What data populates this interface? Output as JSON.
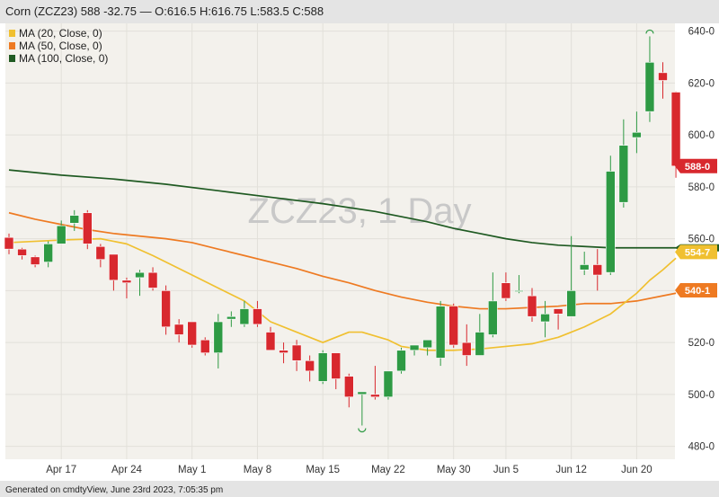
{
  "header": {
    "title": "Corn (ZCZ23) 588 -32.75 — O:616.5 H:616.75 L:583.5 C:588"
  },
  "watermark": "ZCZ23, 1 Day",
  "footer": "Generated on cmdtyView, June 23rd 2023, 7:05:35 pm",
  "colors": {
    "up": "#2e9a44",
    "down": "#d8282e",
    "ma20": "#f0c030",
    "ma50": "#ee7a22",
    "ma100": "#1f5a22",
    "plot_bg": "#f3f1ec",
    "header_bg": "#e4e4e4"
  },
  "chart_data": {
    "type": "candlestick",
    "ylim": [
      475,
      643
    ],
    "y_ticks": [
      "640-0",
      "620-0",
      "600-0",
      "580-0",
      "560-0",
      "540-0",
      "520-0",
      "500-0",
      "480-0"
    ],
    "x_labels": [
      "Apr 17",
      "Apr 24",
      "May 1",
      "May 8",
      "May 15",
      "May 22",
      "May 30",
      "Jun 5",
      "Jun 12",
      "Jun 20"
    ],
    "x_label_index": [
      4,
      9,
      14,
      19,
      24,
      29,
      34,
      38,
      43,
      48
    ],
    "legend": [
      "MA (20, Close, 0)",
      "MA (50, Close, 0)",
      "MA (100, Close, 0)"
    ],
    "candles": [
      [
        560.5,
        562,
        554,
        556
      ],
      [
        556,
        556.5,
        552,
        553.5
      ],
      [
        553,
        553.5,
        549,
        550
      ],
      [
        551,
        559,
        549,
        558
      ],
      [
        558,
        567,
        558,
        565
      ],
      [
        566,
        571,
        563,
        569
      ],
      [
        570,
        571,
        556,
        558
      ],
      [
        557,
        558,
        549,
        552
      ],
      [
        554,
        554,
        540,
        544
      ],
      [
        544,
        545,
        537,
        543
      ],
      [
        545,
        548,
        538,
        547
      ],
      [
        547,
        549,
        540,
        541
      ],
      [
        540,
        542,
        523,
        526
      ],
      [
        527,
        529,
        520,
        523
      ],
      [
        528,
        528,
        518,
        519
      ],
      [
        521,
        522,
        515,
        516
      ],
      [
        516,
        531,
        510,
        528
      ],
      [
        529,
        532,
        526,
        530
      ],
      [
        527,
        536,
        526,
        533
      ],
      [
        533,
        536,
        526,
        527
      ],
      [
        524,
        526,
        517,
        517
      ],
      [
        517,
        520,
        512,
        516
      ],
      [
        519,
        521,
        509,
        513
      ],
      [
        513,
        515,
        505,
        509
      ],
      [
        505,
        517,
        504,
        516
      ],
      [
        516,
        516,
        502,
        506
      ],
      [
        507,
        508,
        495,
        499
      ],
      [
        500,
        501,
        488,
        501
      ],
      [
        500,
        511,
        498,
        499
      ],
      [
        499,
        509,
        498,
        509
      ],
      [
        509,
        518,
        508,
        517
      ],
      [
        517,
        519,
        515,
        519
      ],
      [
        518,
        521,
        515,
        521
      ],
      [
        514,
        536,
        511,
        534
      ],
      [
        534,
        535,
        518,
        519
      ],
      [
        520,
        527,
        511,
        515
      ],
      [
        515,
        531,
        515,
        524
      ],
      [
        523,
        547,
        522,
        536
      ],
      [
        543,
        547,
        536,
        537
      ],
      [
        540,
        546,
        539,
        540
      ],
      [
        538,
        541,
        528,
        530
      ],
      [
        528,
        536,
        522,
        531
      ],
      [
        533,
        533,
        525,
        531
      ],
      [
        530,
        561,
        530,
        540
      ],
      [
        548,
        555,
        546,
        550
      ],
      [
        550,
        556,
        540,
        546
      ],
      [
        547,
        592,
        546,
        586
      ],
      [
        574,
        606,
        572,
        596
      ],
      [
        599,
        609,
        593,
        601
      ],
      [
        609,
        638,
        605,
        628
      ],
      [
        624,
        628,
        614,
        621
      ],
      [
        616.5,
        616.75,
        583.5,
        588
      ]
    ],
    "ma20": [
      [
        0,
        558.5
      ],
      [
        4,
        559.5
      ],
      [
        7,
        560
      ],
      [
        9,
        558
      ],
      [
        11,
        553.5
      ],
      [
        14,
        546
      ],
      [
        16,
        541
      ],
      [
        18,
        536
      ],
      [
        20,
        528
      ],
      [
        22,
        524
      ],
      [
        24,
        520
      ],
      [
        26,
        524
      ],
      [
        27,
        524
      ],
      [
        29,
        521
      ],
      [
        30,
        518.5
      ],
      [
        32,
        517
      ],
      [
        34,
        517
      ],
      [
        36,
        517.5
      ],
      [
        38,
        518.5
      ],
      [
        40,
        519.5
      ],
      [
        42,
        522
      ],
      [
        44,
        526
      ],
      [
        46,
        531
      ],
      [
        47,
        535
      ],
      [
        48,
        539
      ],
      [
        49,
        544
      ],
      [
        50,
        548
      ],
      [
        51,
        552.5
      ]
    ],
    "ma50": [
      [
        0,
        570
      ],
      [
        2,
        567.5
      ],
      [
        4,
        565.5
      ],
      [
        6,
        563.5
      ],
      [
        8,
        562
      ],
      [
        10,
        561
      ],
      [
        12,
        560
      ],
      [
        14,
        558.5
      ],
      [
        16,
        556
      ],
      [
        18,
        553.5
      ],
      [
        20,
        551
      ],
      [
        22,
        548.5
      ],
      [
        24,
        545.5
      ],
      [
        26,
        543
      ],
      [
        28,
        540
      ],
      [
        30,
        537.5
      ],
      [
        32,
        535.5
      ],
      [
        34,
        534
      ],
      [
        36,
        533
      ],
      [
        38,
        533
      ],
      [
        40,
        533.5
      ],
      [
        42,
        534
      ],
      [
        44,
        535
      ],
      [
        46,
        535
      ],
      [
        48,
        536
      ],
      [
        50,
        538
      ],
      [
        51,
        539
      ]
    ],
    "ma100": [
      [
        0,
        586.5
      ],
      [
        4,
        584.5
      ],
      [
        8,
        583
      ],
      [
        12,
        581
      ],
      [
        16,
        578.5
      ],
      [
        20,
        576
      ],
      [
        24,
        573.5
      ],
      [
        28,
        570.5
      ],
      [
        30,
        568.5
      ],
      [
        32,
        566.5
      ],
      [
        34,
        564
      ],
      [
        36,
        562
      ],
      [
        38,
        560
      ],
      [
        40,
        558.5
      ],
      [
        42,
        557.5
      ],
      [
        44,
        557
      ],
      [
        46,
        556.5
      ],
      [
        48,
        556.5
      ],
      [
        50,
        556.5
      ],
      [
        51,
        556.5
      ]
    ],
    "price_labels": [
      {
        "text": "588-0",
        "value": 588,
        "color": "#d8282e"
      },
      {
        "text": "554-7",
        "value": 554.875,
        "color": "#f0c030"
      },
      {
        "text": "540-1",
        "value": 540.125,
        "color": "#ee7a22"
      }
    ]
  }
}
